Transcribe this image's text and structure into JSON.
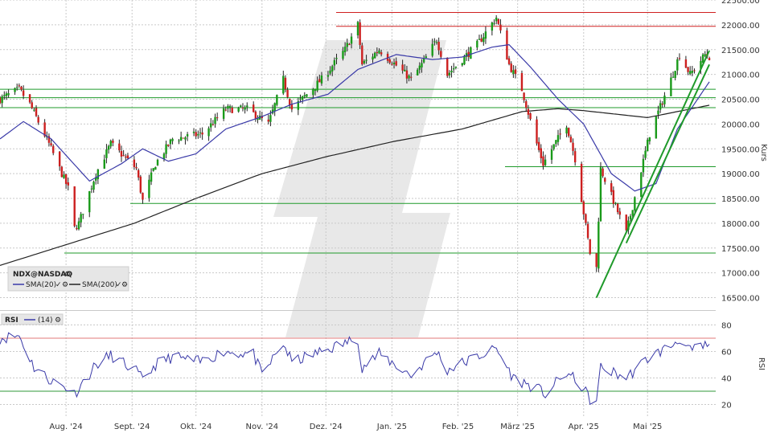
{
  "chart_data": [
    {
      "type": "candlestick",
      "symbol": "NDX@NASDAQ",
      "ylabel": "Kurs",
      "ylim": [
        16250,
        22500
      ],
      "yticks": [
        "22500.00",
        "22000.00",
        "21500.00",
        "21000.00",
        "20500.00",
        "20000.00",
        "19500.00",
        "19000.00",
        "18500.00",
        "18000.00",
        "17500.00",
        "17000.00",
        "16500.00"
      ],
      "xticks": [
        "Aug. '24",
        "Sept. '24",
        "Okt. '24",
        "Nov. '24",
        "Dez. '24",
        "Jan. '25",
        "Feb. '25",
        "März '25",
        "Apr. '25",
        "Mai '25"
      ],
      "grid": true,
      "legend": "top-left",
      "indicators": [
        "SMA(20)",
        "SMA(200)"
      ],
      "colors": {
        "up": "#1a9a1a",
        "down": "#cc1f1f",
        "sma20": "#3a3aa8",
        "sma200": "#222222",
        "support": "#1f9a2a",
        "resistance": "#d02020"
      },
      "horizontal_levels": [
        {
          "price": 22250,
          "color": "resistance"
        },
        {
          "price": 21970,
          "color": "resistance"
        },
        {
          "price": 20700,
          "color": "support"
        },
        {
          "price": 20530,
          "color": "support"
        },
        {
          "price": 20330,
          "color": "support"
        },
        {
          "price": 19140,
          "color": "support"
        },
        {
          "price": 18400,
          "color": "support"
        },
        {
          "price": 17400,
          "color": "support"
        }
      ],
      "trendlines": [
        {
          "from": [
            "2025-04-07",
            16500
          ],
          "to": [
            "2025-05-30",
            21480
          ]
        },
        {
          "from": [
            "2025-04-21",
            17600
          ],
          "to": [
            "2025-05-30",
            21200
          ]
        }
      ],
      "sma200_anchors": [
        [
          "2024-07-01",
          17150
        ],
        [
          "2024-09-02",
          18000
        ],
        [
          "2024-10-01",
          18500
        ],
        [
          "2024-11-01",
          19000
        ],
        [
          "2024-12-02",
          19350
        ],
        [
          "2025-01-02",
          19650
        ],
        [
          "2025-02-03",
          19900
        ],
        [
          "2025-03-03",
          20250
        ],
        [
          "2025-03-20",
          20310
        ],
        [
          "2025-04-01",
          20270
        ],
        [
          "2025-05-01",
          20130
        ],
        [
          "2025-05-30",
          20380
        ]
      ],
      "sma20_anchors": [
        [
          "2024-07-01",
          19700
        ],
        [
          "2024-07-12",
          20050
        ],
        [
          "2024-07-25",
          19700
        ],
        [
          "2024-08-12",
          18850
        ],
        [
          "2024-08-27",
          19200
        ],
        [
          "2024-09-06",
          19500
        ],
        [
          "2024-09-18",
          19250
        ],
        [
          "2024-10-01",
          19400
        ],
        [
          "2024-10-15",
          19900
        ],
        [
          "2024-11-01",
          20150
        ],
        [
          "2024-11-15",
          20400
        ],
        [
          "2024-12-02",
          20600
        ],
        [
          "2024-12-16",
          21100
        ],
        [
          "2025-01-03",
          21400
        ],
        [
          "2025-01-20",
          21300
        ],
        [
          "2025-02-03",
          21350
        ],
        [
          "2025-02-17",
          21550
        ],
        [
          "2025-02-25",
          21600
        ],
        [
          "2025-03-07",
          21150
        ],
        [
          "2025-03-20",
          20500
        ],
        [
          "2025-04-01",
          20000
        ],
        [
          "2025-04-14",
          19000
        ],
        [
          "2025-04-25",
          18650
        ],
        [
          "2025-05-05",
          18800
        ],
        [
          "2025-05-15",
          19900
        ],
        [
          "2025-05-30",
          20850
        ]
      ],
      "price_anchors": [
        [
          "2024-07-01",
          20500
        ],
        [
          "2024-07-10",
          20700
        ],
        [
          "2024-07-15",
          20400
        ],
        [
          "2024-07-24",
          19600
        ],
        [
          "2024-08-02",
          18700
        ],
        [
          "2024-08-05",
          17900
        ],
        [
          "2024-08-07",
          18000
        ],
        [
          "2024-08-15",
          19000
        ],
        [
          "2024-08-22",
          19600
        ],
        [
          "2024-09-03",
          19100
        ],
        [
          "2024-09-06",
          18450
        ],
        [
          "2024-09-12",
          19200
        ],
        [
          "2024-09-20",
          19700
        ],
        [
          "2024-10-04",
          19800
        ],
        [
          "2024-10-15",
          20300
        ],
        [
          "2024-10-25",
          20300
        ],
        [
          "2024-11-04",
          20000
        ],
        [
          "2024-11-11",
          20900
        ],
        [
          "2024-11-15",
          20300
        ],
        [
          "2024-11-29",
          20900
        ],
        [
          "2024-12-10",
          21500
        ],
        [
          "2024-12-16",
          22000
        ],
        [
          "2024-12-18",
          21200
        ],
        [
          "2024-12-26",
          21500
        ],
        [
          "2025-01-10",
          20900
        ],
        [
          "2025-01-15",
          21200
        ],
        [
          "2025-01-22",
          21700
        ],
        [
          "2025-01-27",
          21000
        ],
        [
          "2025-02-03",
          21300
        ],
        [
          "2025-02-10",
          21600
        ],
        [
          "2025-02-19",
          22150
        ],
        [
          "2025-02-25",
          21200
        ],
        [
          "2025-03-03",
          20700
        ],
        [
          "2025-03-10",
          19600
        ],
        [
          "2025-03-13",
          19200
        ],
        [
          "2025-03-24",
          20000
        ],
        [
          "2025-03-28",
          19300
        ],
        [
          "2025-04-04",
          17400
        ],
        [
          "2025-04-07",
          17100
        ],
        [
          "2025-04-09",
          19100
        ],
        [
          "2025-04-21",
          17800
        ],
        [
          "2025-05-02",
          19800
        ],
        [
          "2025-05-12",
          20900
        ],
        [
          "2025-05-16",
          21400
        ],
        [
          "2025-05-21",
          21000
        ],
        [
          "2025-05-28",
          21400
        ],
        [
          "2025-05-30",
          21350
        ]
      ]
    },
    {
      "type": "line",
      "indicator": "RSI",
      "period": "(14)",
      "ylabel": "RSI",
      "ylim": [
        10,
        90
      ],
      "yticks": [
        "80",
        "60",
        "40",
        "20"
      ],
      "levels": [
        {
          "value": 70,
          "color": "#e07a7a"
        },
        {
          "value": 30,
          "color": "#2f9a3a"
        }
      ],
      "line_color": "#3a3aa8",
      "anchors": [
        [
          "2024-07-01",
          70
        ],
        [
          "2024-07-10",
          72
        ],
        [
          "2024-07-17",
          48
        ],
        [
          "2024-07-25",
          38
        ],
        [
          "2024-08-02",
          32
        ],
        [
          "2024-08-05",
          28
        ],
        [
          "2024-08-15",
          50
        ],
        [
          "2024-08-22",
          57
        ],
        [
          "2024-09-03",
          45
        ],
        [
          "2024-09-06",
          38
        ],
        [
          "2024-09-12",
          50
        ],
        [
          "2024-09-20",
          56
        ],
        [
          "2024-10-03",
          52
        ],
        [
          "2024-10-14",
          60
        ],
        [
          "2024-10-28",
          58
        ],
        [
          "2024-11-01",
          42
        ],
        [
          "2024-11-11",
          66
        ],
        [
          "2024-11-15",
          52
        ],
        [
          "2024-11-29",
          60
        ],
        [
          "2024-12-16",
          70
        ],
        [
          "2024-12-18",
          48
        ],
        [
          "2024-12-26",
          58
        ],
        [
          "2025-01-10",
          42
        ],
        [
          "2025-01-22",
          60
        ],
        [
          "2025-01-27",
          46
        ],
        [
          "2025-02-07",
          54
        ],
        [
          "2025-02-19",
          62
        ],
        [
          "2025-02-27",
          40
        ],
        [
          "2025-03-10",
          32
        ],
        [
          "2025-03-14",
          28
        ],
        [
          "2025-03-24",
          44
        ],
        [
          "2025-03-31",
          34
        ],
        [
          "2025-04-04",
          24
        ],
        [
          "2025-04-07",
          22
        ],
        [
          "2025-04-09",
          48
        ],
        [
          "2025-04-21",
          40
        ],
        [
          "2025-05-02",
          56
        ],
        [
          "2025-05-12",
          64
        ],
        [
          "2025-05-16",
          70
        ],
        [
          "2025-05-21",
          60
        ],
        [
          "2025-05-28",
          64
        ],
        [
          "2025-05-30",
          64
        ]
      ]
    }
  ]
}
